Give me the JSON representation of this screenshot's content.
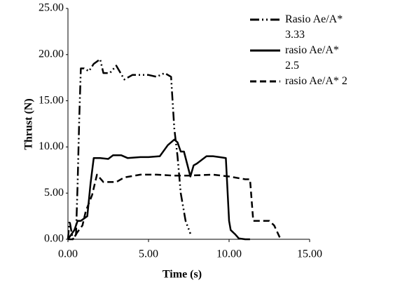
{
  "chart_data": {
    "type": "line",
    "x_label": "Time (s)",
    "y_label": "Thrust (N)",
    "xlim": [
      0,
      15
    ],
    "ylim": [
      0,
      25
    ],
    "xticks": [
      {
        "value": 0,
        "label": "0.00"
      },
      {
        "value": 5,
        "label": "5.00"
      },
      {
        "value": 10,
        "label": "10.00"
      },
      {
        "value": 15,
        "label": "15.00"
      }
    ],
    "yticks": [
      {
        "value": 0,
        "label": "0.00"
      },
      {
        "value": 5,
        "label": "5.00"
      },
      {
        "value": 10,
        "label": "10.00"
      },
      {
        "value": 15,
        "label": "15.00"
      },
      {
        "value": 20,
        "label": "20.00"
      },
      {
        "value": 25,
        "label": "25.00"
      }
    ],
    "grid": false,
    "legend": "top-right",
    "series": [
      {
        "name": "Rasio Ae/A* 3.33",
        "color": "#000000",
        "linestyle": "dash-dot-dot",
        "x": [
          0,
          0.1,
          0.3,
          0.5,
          0.6,
          0.7,
          0.8,
          1.0,
          1.3,
          1.6,
          2.0,
          2.2,
          2.6,
          3.0,
          3.5,
          4.0,
          4.5,
          5.0,
          5.5,
          6.0,
          6.4,
          6.6,
          6.8,
          7.0,
          7.3,
          7.6
        ],
        "values": [
          0,
          2,
          0,
          0.5,
          6,
          13,
          18.5,
          18.5,
          18.2,
          19,
          19.5,
          18,
          18,
          18.8,
          17.3,
          17.8,
          17.8,
          17.8,
          17.6,
          18,
          17.6,
          12,
          9,
          5,
          2,
          0.6
        ]
      },
      {
        "name": "rasio Ae/A* 2.5",
        "color": "#000000",
        "linestyle": "solid",
        "x": [
          0,
          0.2,
          0.4,
          0.6,
          0.8,
          1.2,
          1.4,
          1.6,
          2.0,
          2.5,
          2.8,
          3.3,
          3.7,
          4.5,
          5.0,
          5.7,
          6.2,
          6.6,
          6.8,
          7.0,
          7.2,
          7.6,
          7.8,
          8.0,
          8.6,
          9.0,
          9.4,
          9.8,
          10.0,
          10.1,
          10.4,
          10.6,
          11.0,
          11.3
        ],
        "values": [
          0,
          0.5,
          1,
          2,
          2,
          2.5,
          6,
          8.8,
          8.8,
          8.7,
          9.1,
          9.1,
          8.8,
          8.9,
          8.9,
          9,
          10.2,
          10.8,
          10.5,
          9.5,
          9.5,
          6.8,
          8,
          8.2,
          9,
          9,
          8.9,
          8.8,
          2,
          1,
          0.5,
          0.1,
          0,
          0
        ]
      },
      {
        "name": "rasio Ae/A* 2",
        "color": "#000000",
        "linestyle": "dashed",
        "x": [
          0,
          0.3,
          0.6,
          0.9,
          1.1,
          1.5,
          1.8,
          2.2,
          3.0,
          3.5,
          4.5,
          5.5,
          6.5,
          7.5,
          9.0,
          10.0,
          11.0,
          11.3,
          11.5,
          12.0,
          12.5,
          12.8,
          13.2
        ],
        "values": [
          0,
          0,
          0.8,
          1.5,
          3,
          4.8,
          7,
          6.2,
          6.2,
          6.7,
          7,
          7,
          6.9,
          6.9,
          7,
          6.8,
          6.5,
          6.5,
          2,
          2,
          2,
          1.5,
          0
        ]
      }
    ]
  }
}
